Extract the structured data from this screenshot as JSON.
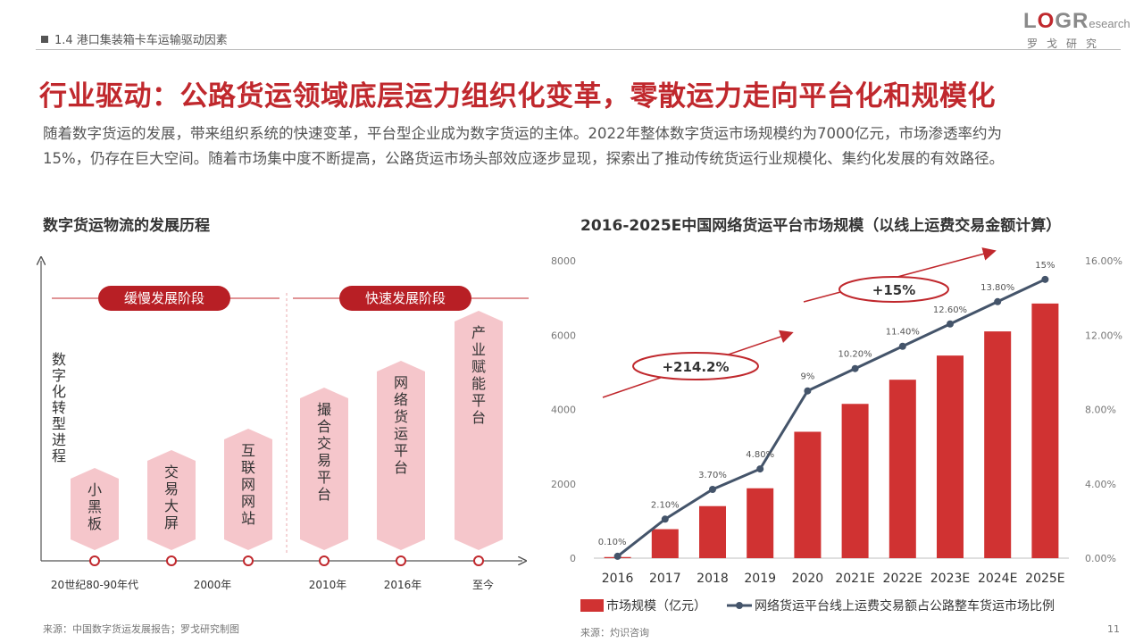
{
  "header": {
    "section": "1.4 港口集装箱卡车运输驱动因素",
    "logo_l": "L",
    "logo_o": "O",
    "logo_g": "G",
    "logo_r": "R",
    "logo_research": "esearch",
    "logo_sub": "罗戈研究"
  },
  "title": "行业驱动：公路货运领域底层运力组织化变革，零散运力走向平台化和规模化",
  "paragraph": {
    "line1": "随着数字货运的发展，带来组织系统的快速变革，平台型企业成为数字货运的主体。2022年整体数字货运市场规模约为7000亿元，市场渗透率约为",
    "line2": "15%，仍存在巨大空间。随着市场集中度不断提高，公路货运市场头部效应逐步显现，探索出了推动传统货运行业规模化、集约化发展的有效路径。"
  },
  "left": {
    "title": "数字货运物流的发展历程",
    "y_axis_label": "数字化转型进程",
    "phases": [
      "缓慢发展阶段",
      "快速发展阶段"
    ],
    "stages": [
      "小黑板",
      "交易大屏",
      "互联网网站",
      "撮合交易平台",
      "网络货运平台",
      "产业赋能平台"
    ],
    "timeline": [
      "20世纪80-90年代",
      "2000年",
      "2010年",
      "2016年",
      "至今"
    ],
    "source": "来源：中国数字货运发展报告；罗戈研究制图"
  },
  "colors": {
    "red": "#c0282d",
    "bar": "#d03232",
    "line": "#44546a",
    "pink": "#f5c6cb"
  },
  "chart_data": {
    "type": "bar",
    "title": "2016-2025E中国网络货运平台市场规模（以线上运费交易金额计算）",
    "categories": [
      "2016",
      "2017",
      "2018",
      "2019",
      "2020",
      "2021E",
      "2022E",
      "2023E",
      "2024E",
      "2025E"
    ],
    "series": [
      {
        "name": "市场规模（亿元）",
        "type": "bar",
        "axis": "left",
        "values": [
          30,
          780,
          1400,
          1880,
          3400,
          4150,
          4800,
          5450,
          6100,
          6850
        ]
      },
      {
        "name": "网络货运平台线上运费交易额占公路整车货运市场比例",
        "type": "line",
        "axis": "right",
        "values": [
          0.1,
          2.1,
          3.7,
          4.8,
          9,
          10.2,
          11.4,
          12.6,
          13.8,
          15
        ],
        "labels": [
          "0.10%",
          "2.10%",
          "3.70%",
          "4.80%",
          "9%",
          "10.20%",
          "11.40%",
          "12.60%",
          "13.80%",
          "15%"
        ]
      }
    ],
    "ylim": [
      0,
      8000
    ],
    "y_ticks": [
      "0",
      "2000",
      "4000",
      "6000",
      "8000"
    ],
    "y2lim": [
      0,
      16
    ],
    "y2_ticks": [
      "0.00%",
      "4.00%",
      "8.00%",
      "12.00%",
      "16.00%"
    ],
    "annotations": [
      "+214.2%",
      "+15%"
    ],
    "legend": "bottom",
    "source": "来源：灼识咨询"
  },
  "page": "11"
}
